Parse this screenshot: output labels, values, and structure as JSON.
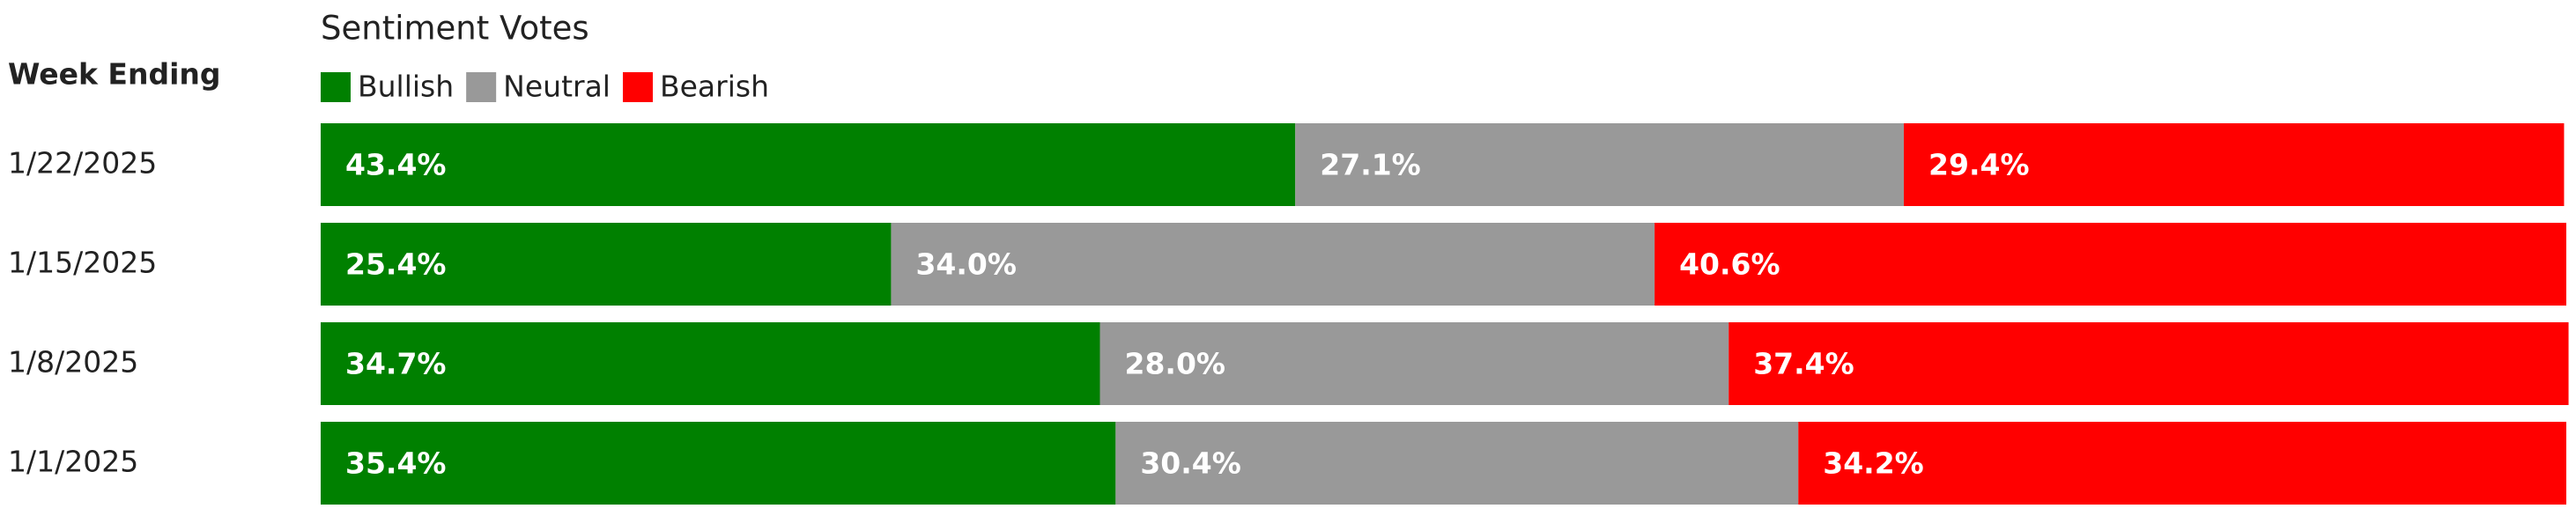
{
  "chart_data": {
    "type": "bar",
    "orientation": "horizontal",
    "stacked": true,
    "title": "Sentiment Votes",
    "ylabel": "Week Ending",
    "categories": [
      "1/22/2025",
      "1/15/2025",
      "1/8/2025",
      "1/1/2025"
    ],
    "xlim": [
      0,
      100
    ],
    "legend": "top-left",
    "series": [
      {
        "name": "Bullish",
        "color": "#008000",
        "values": [
          43.4,
          25.4,
          34.7,
          35.4
        ],
        "value_labels": [
          "43.4%",
          "25.4%",
          "34.7%",
          "35.4%"
        ]
      },
      {
        "name": "Neutral",
        "color": "#999999",
        "values": [
          27.1,
          34.0,
          28.0,
          30.4
        ],
        "value_labels": [
          "27.1%",
          "34.0%",
          "28.0%",
          "30.4%"
        ]
      },
      {
        "name": "Bearish",
        "color": "#ff0000",
        "values": [
          29.4,
          40.6,
          37.4,
          34.2
        ],
        "value_labels": [
          "29.4%",
          "40.6%",
          "37.4%",
          "34.2%"
        ]
      }
    ]
  }
}
